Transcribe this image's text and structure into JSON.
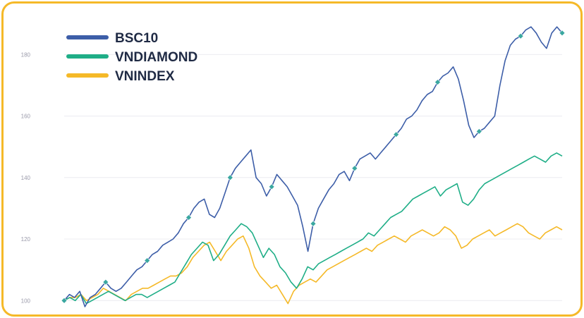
{
  "chart_data": {
    "type": "line",
    "title": "",
    "xlabel": "",
    "ylabel": "",
    "ylim": [
      98,
      192
    ],
    "yticks": [
      100,
      120,
      140,
      160,
      180
    ],
    "grid": "horizontal",
    "legend_position": "top-left",
    "series": [
      {
        "name": "BSC10",
        "color": "#3d5ea8",
        "values": [
          100,
          102,
          101,
          103,
          98,
          101,
          102,
          104,
          106,
          104,
          103,
          104,
          106,
          108,
          110,
          111,
          113,
          115,
          116,
          118,
          119,
          120,
          122,
          125,
          127,
          130,
          132,
          133,
          128,
          127,
          130,
          135,
          140,
          143,
          145,
          147,
          149,
          140,
          138,
          134,
          137,
          141,
          139,
          137,
          134,
          131,
          124,
          116,
          125,
          130,
          133,
          136,
          138,
          141,
          142,
          139,
          143,
          146,
          147,
          148,
          146,
          148,
          150,
          152,
          154,
          156,
          159,
          160,
          162,
          165,
          167,
          168,
          171,
          173,
          174,
          176,
          172,
          165,
          157,
          153,
          155,
          156,
          158,
          160,
          170,
          178,
          183,
          185,
          186,
          188,
          189,
          187,
          184,
          182,
          187,
          189,
          187
        ]
      },
      {
        "name": "VNDIAMOND",
        "color": "#1fae87",
        "values": [
          100,
          101,
          100,
          102,
          99,
          100,
          101,
          102,
          103,
          102,
          101,
          100,
          101,
          102,
          102,
          101,
          102,
          103,
          104,
          105,
          106,
          109,
          112,
          115,
          117,
          119,
          118,
          113,
          115,
          118,
          121,
          123,
          125,
          124,
          122,
          118,
          114,
          117,
          115,
          111,
          109,
          106,
          104,
          107,
          111,
          110,
          112,
          113,
          114,
          115,
          116,
          117,
          118,
          119,
          120,
          122,
          121,
          123,
          125,
          127,
          128,
          129,
          131,
          133,
          134,
          135,
          136,
          137,
          134,
          136,
          137,
          138,
          132,
          131,
          133,
          136,
          138,
          139,
          140,
          141,
          142,
          143,
          144,
          145,
          146,
          147,
          146,
          145,
          147,
          148,
          147
        ]
      },
      {
        "name": "VNINDEX",
        "color": "#f5b928",
        "values": [
          100,
          101,
          101,
          102,
          100,
          101,
          102,
          104,
          103,
          102,
          101,
          100,
          102,
          103,
          104,
          104,
          105,
          106,
          107,
          108,
          108,
          109,
          111,
          114,
          116,
          118,
          119,
          116,
          113,
          116,
          118,
          120,
          121,
          117,
          111,
          108,
          106,
          104,
          105,
          102,
          99,
          103,
          105,
          106,
          107,
          106,
          108,
          110,
          111,
          112,
          113,
          114,
          115,
          116,
          117,
          116,
          118,
          119,
          120,
          121,
          120,
          119,
          121,
          122,
          123,
          122,
          121,
          122,
          124,
          123,
          121,
          117,
          118,
          120,
          121,
          122,
          123,
          121,
          122,
          123,
          124,
          125,
          124,
          122,
          121,
          120,
          122,
          123,
          124,
          123
        ]
      }
    ]
  }
}
